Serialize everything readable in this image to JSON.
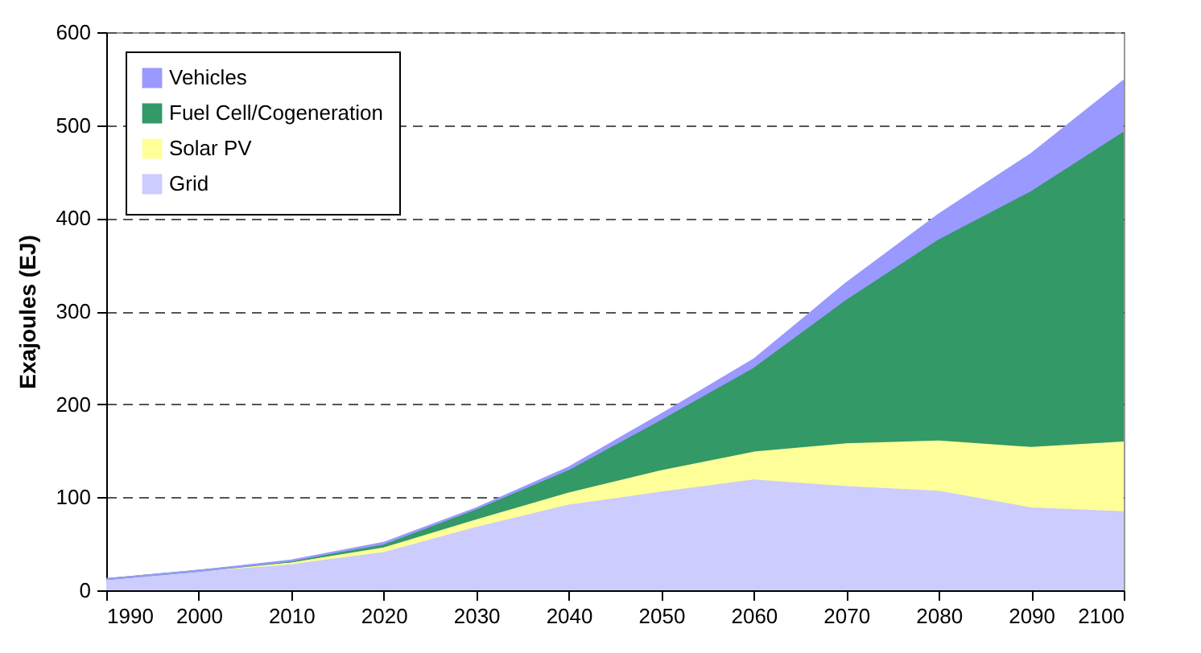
{
  "chart_data": {
    "type": "area",
    "ylabel": "Exajoules (EJ)",
    "stacked": true,
    "x": [
      1990,
      2000,
      2010,
      2020,
      2030,
      2040,
      2050,
      2060,
      2070,
      2080,
      2090,
      2100
    ],
    "series": [
      {
        "name": "Grid",
        "color": "#ccccff",
        "values": [
          12,
          20,
          27,
          40,
          67,
          91,
          105,
          118,
          111,
          106,
          88,
          84
        ]
      },
      {
        "name": "Solar PV",
        "color": "#ffff99",
        "values": [
          0,
          1,
          2,
          5,
          8,
          13,
          23,
          30,
          46,
          54,
          65,
          75
        ]
      },
      {
        "name": "Fuel Cell/Cogeneration",
        "color": "#339966",
        "values": [
          0,
          0,
          2,
          3,
          11,
          24,
          54,
          90,
          154,
          216,
          275,
          333
        ]
      },
      {
        "name": "Vehicles",
        "color": "#9999ff",
        "values": [
          0,
          0,
          1,
          3,
          2,
          4,
          7,
          10,
          19,
          28,
          41,
          56
        ]
      }
    ],
    "xlim": [
      1990,
      2100
    ],
    "xticks": [
      1990,
      2000,
      2010,
      2020,
      2030,
      2040,
      2050,
      2060,
      2070,
      2080,
      2090,
      2100
    ],
    "ylim": [
      0,
      600
    ],
    "yticks": [
      0,
      100,
      200,
      300,
      400,
      500,
      600
    ],
    "grid": "y",
    "legend": "top left"
  }
}
